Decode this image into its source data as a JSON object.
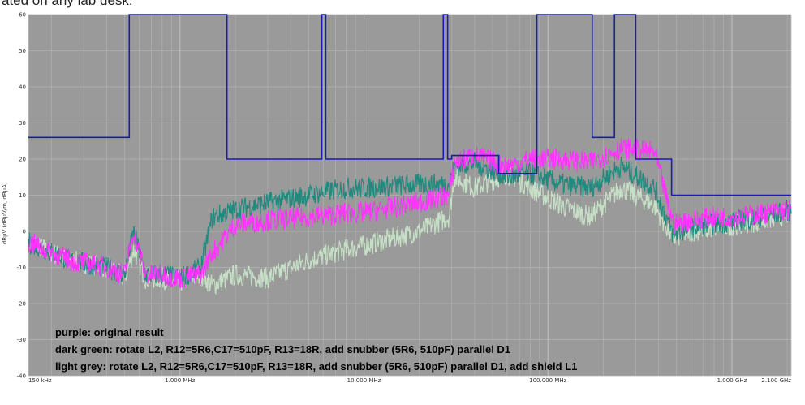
{
  "caption": "ated on any lab desk.",
  "chart_data": {
    "type": "line",
    "xscale": "log",
    "xlim": [
      150000,
      2100000000
    ],
    "ylim": [
      -40,
      60
    ],
    "ylabel": "dBµV (dBµV/m, dBµA)",
    "yticks": [
      -40,
      -30,
      -20,
      -10,
      0,
      10,
      20,
      30,
      40,
      50,
      60
    ],
    "xticks": [
      {
        "value": 150000,
        "label": "150 kHz"
      },
      {
        "value": 1000000,
        "label": "1.000 MHz"
      },
      {
        "value": 10000000,
        "label": "10.000 MHz"
      },
      {
        "value": 100000000,
        "label": "100.000 MHz"
      },
      {
        "value": 1000000000,
        "label": "1.000 GHz"
      },
      {
        "value": 2100000000,
        "label": "2.100 GHz"
      }
    ],
    "grid": true,
    "colors": {
      "background": "#9a9a9a",
      "grid": "#b4b4b4",
      "limit": "#1a1ab4",
      "purple": "#ff33ff",
      "dark_green": "#1f8a7e",
      "light_grey": "#c6e0c6"
    },
    "series": [
      {
        "name": "limit",
        "color": "#1a1ab4",
        "x": [
          150000,
          530000,
          530000,
          1800000,
          1800000,
          5900000,
          5900000,
          6200000,
          6200000,
          27000000,
          27000000,
          28500000,
          28500000,
          30000000,
          30000000,
          54000000,
          54000000,
          68000000,
          68000000,
          87000000,
          87000000,
          174000000,
          174000000,
          230000000,
          230000000,
          300000000,
          300000000,
          470000000,
          470000000,
          2100000000
        ],
        "y": [
          26,
          26,
          60,
          60,
          20,
          20,
          60,
          60,
          20,
          20,
          60,
          60,
          20,
          20,
          21,
          21,
          16,
          16,
          16,
          16,
          60,
          60,
          26,
          26,
          60,
          60,
          20,
          20,
          10,
          10
        ]
      },
      {
        "name": "light grey",
        "color": "#c6e0c6",
        "x": [
          150000,
          250000,
          400000,
          500000,
          560000,
          650000,
          800000,
          1000000,
          1300000,
          1500000,
          2000000,
          3000000,
          5000000,
          8000000,
          10000000,
          20000000,
          29000000,
          31000000,
          40000000,
          60000000,
          80000000,
          120000000,
          170000000,
          250000000,
          380000000,
          480000000,
          600000000,
          800000000,
          1100000000,
          1500000000,
          2100000000
        ],
        "y": [
          -3,
          -8,
          -10,
          -13,
          -5,
          -13,
          -13,
          -14,
          -12,
          -15,
          -12,
          -13,
          -8,
          -5,
          -4,
          0,
          4,
          15,
          12,
          16,
          12,
          7,
          4,
          12,
          7,
          -2,
          0,
          1,
          2,
          3,
          5
        ]
      },
      {
        "name": "dark green",
        "color": "#1f8a7e",
        "x": [
          150000,
          250000,
          400000,
          500000,
          560000,
          650000,
          800000,
          1000000,
          1300000,
          1500000,
          2000000,
          3000000,
          5000000,
          8000000,
          10000000,
          20000000,
          29000000,
          31000000,
          40000000,
          60000000,
          80000000,
          120000000,
          170000000,
          250000000,
          380000000,
          480000000,
          600000000,
          800000000,
          1100000000,
          1500000000,
          2100000000
        ],
        "y": [
          -3,
          -8,
          -10,
          -12,
          0,
          -12,
          -12,
          -13,
          -10,
          4,
          6,
          8,
          10,
          12,
          12,
          13,
          13,
          18,
          19,
          15,
          16,
          13,
          12,
          18,
          12,
          -1,
          1,
          2,
          3,
          4,
          6
        ]
      },
      {
        "name": "purple",
        "color": "#ff33ff",
        "x": [
          150000,
          250000,
          400000,
          500000,
          560000,
          650000,
          800000,
          1000000,
          1300000,
          1500000,
          2000000,
          3000000,
          5000000,
          8000000,
          10000000,
          20000000,
          29000000,
          31000000,
          40000000,
          60000000,
          80000000,
          120000000,
          170000000,
          250000000,
          380000000,
          480000000,
          600000000,
          800000000,
          1100000000,
          1500000000,
          2100000000
        ],
        "y": [
          -3,
          -8,
          -10,
          -12,
          0,
          -12,
          -12,
          -13,
          -12,
          -6,
          2,
          3,
          4,
          5,
          5,
          8,
          10,
          19,
          21,
          18,
          20,
          20,
          19,
          23,
          22,
          2,
          3,
          4,
          4,
          5,
          6
        ]
      }
    ],
    "annotations": [
      "purple: original result",
      "dark green: rotate L2, R12=5R6,C17=510pF, R13=18R, add snubber (5R6, 510pF) parallel D1",
      "light grey: rotate L2, R12=5R6,C17=510pF, R13=18R, add snubber (5R6, 510pF) parallel D1, add shield L1"
    ]
  }
}
